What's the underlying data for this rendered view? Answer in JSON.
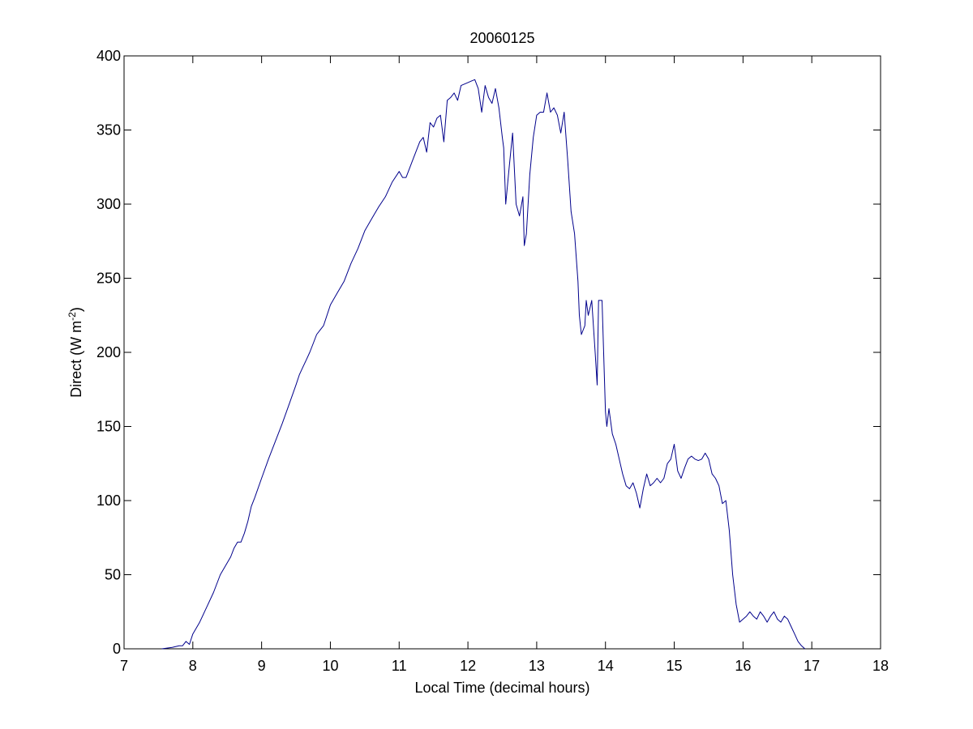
{
  "chart_data": {
    "type": "line",
    "title": "20060125",
    "xlabel": "Local Time (decimal hours)",
    "ylabel": {
      "main": "Direct (W m",
      "superscript": "-2",
      "closing": ")"
    },
    "xlim": [
      7,
      18
    ],
    "ylim": [
      0,
      400
    ],
    "xticks": [
      "7",
      "8",
      "9",
      "10",
      "11",
      "12",
      "13",
      "14",
      "15",
      "16",
      "17",
      "18"
    ],
    "yticks": [
      "0",
      "50",
      "100",
      "150",
      "200",
      "250",
      "300",
      "350",
      "400"
    ],
    "grid": false,
    "line_color": "#00008b",
    "series": [
      {
        "x": [
          7.55,
          7.7,
          7.8,
          7.85,
          7.9,
          7.95,
          8.0,
          8.1,
          8.2,
          8.3,
          8.4,
          8.5,
          8.55,
          8.6,
          8.65,
          8.7,
          8.75,
          8.8,
          8.85,
          8.9,
          9.0,
          9.1,
          9.2,
          9.3,
          9.4,
          9.5,
          9.55,
          9.6,
          9.65,
          9.7,
          9.75,
          9.8,
          9.85,
          9.9,
          10.0,
          10.1,
          10.2,
          10.3,
          10.4,
          10.5,
          10.6,
          10.7,
          10.8,
          10.9,
          11.0,
          11.05,
          11.1,
          11.2,
          11.3,
          11.35,
          11.4,
          11.45,
          11.5,
          11.55,
          11.6,
          11.65,
          11.7,
          11.75,
          11.8,
          11.85,
          11.9,
          12.0,
          12.05,
          12.1,
          12.15,
          12.2,
          12.25,
          12.3,
          12.35,
          12.4,
          12.45,
          12.5,
          12.52,
          12.55,
          12.6,
          12.65,
          12.7,
          12.75,
          12.8,
          12.82,
          12.85,
          12.9,
          12.95,
          13.0,
          13.05,
          13.1,
          13.15,
          13.2,
          13.25,
          13.3,
          13.35,
          13.4,
          13.45,
          13.5,
          13.55,
          13.6,
          13.62,
          13.65,
          13.7,
          13.72,
          13.75,
          13.8,
          13.85,
          13.88,
          13.9,
          13.95,
          14.0,
          14.02,
          14.05,
          14.1,
          14.15,
          14.2,
          14.25,
          14.3,
          14.35,
          14.4,
          14.45,
          14.5,
          14.55,
          14.6,
          14.65,
          14.7,
          14.75,
          14.8,
          14.85,
          14.9,
          14.95,
          15.0,
          15.05,
          15.1,
          15.15,
          15.2,
          15.25,
          15.3,
          15.35,
          15.4,
          15.45,
          15.5,
          15.55,
          15.6,
          15.65,
          15.7,
          15.75,
          15.8,
          15.85,
          15.9,
          15.95,
          16.0,
          16.05,
          16.1,
          16.15,
          16.2,
          16.25,
          16.3,
          16.35,
          16.4,
          16.45,
          16.5,
          16.55,
          16.6,
          16.65,
          16.7,
          16.75,
          16.8,
          16.85,
          16.9
        ],
        "y": [
          0,
          1,
          2,
          2,
          5,
          3,
          10,
          18,
          28,
          38,
          50,
          58,
          62,
          68,
          72,
          72,
          78,
          86,
          96,
          102,
          115,
          128,
          140,
          152,
          165,
          178,
          185,
          190,
          195,
          200,
          206,
          212,
          215,
          218,
          232,
          240,
          248,
          260,
          270,
          282,
          290,
          298,
          305,
          315,
          322,
          318,
          318,
          330,
          342,
          345,
          335,
          355,
          352,
          358,
          360,
          342,
          370,
          372,
          375,
          370,
          380,
          382,
          383,
          384,
          378,
          362,
          380,
          372,
          368,
          378,
          365,
          345,
          338,
          300,
          325,
          348,
          300,
          292,
          305,
          272,
          280,
          320,
          345,
          360,
          362,
          362,
          375,
          362,
          365,
          360,
          348,
          362,
          330,
          295,
          280,
          248,
          225,
          212,
          218,
          235,
          225,
          235,
          200,
          178,
          235,
          235,
          160,
          150,
          162,
          145,
          138,
          128,
          118,
          110,
          108,
          112,
          105,
          95,
          108,
          118,
          110,
          112,
          115,
          112,
          115,
          125,
          128,
          138,
          120,
          115,
          122,
          128,
          130,
          128,
          127,
          128,
          132,
          128,
          118,
          115,
          110,
          98,
          100,
          80,
          50,
          30,
          18,
          20,
          22,
          25,
          22,
          20,
          25,
          22,
          18,
          22,
          25,
          20,
          18,
          22,
          20,
          15,
          10,
          5,
          2,
          0
        ]
      }
    ]
  }
}
